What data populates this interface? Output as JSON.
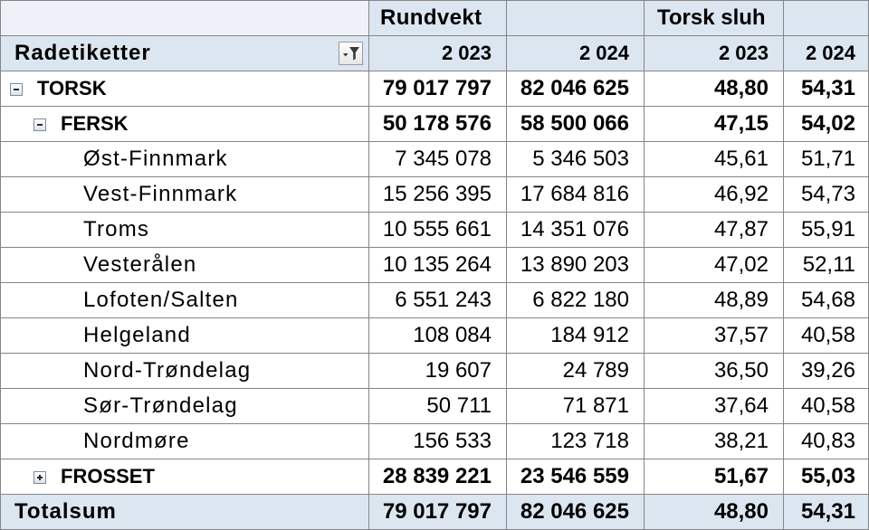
{
  "pivot": {
    "measures": [
      {
        "name": "Rundvekt"
      },
      {
        "name": "Torsk sluh"
      }
    ],
    "row_labels_header": "Radetiketter",
    "filter_icon": "filter-dropdown-icon",
    "years": [
      "2 023",
      "2 024",
      "2 023",
      "2 024"
    ],
    "rows": [
      {
        "label": "TORSK",
        "expanded": true,
        "toggle_icon": "collapse-minus-icon",
        "values": [
          "79 017 797",
          "82 046 625",
          "48,80",
          "54,31"
        ],
        "children": [
          {
            "label": "FERSK",
            "expanded": true,
            "toggle_icon": "collapse-minus-icon",
            "values": [
              "50 178 576",
              "58 500 066",
              "47,15",
              "54,02"
            ],
            "children": [
              {
                "label": "Øst-Finnmark",
                "values": [
                  "7 345 078",
                  "5 346 503",
                  "45,61",
                  "51,71"
                ]
              },
              {
                "label": "Vest-Finnmark",
                "values": [
                  "15 256 395",
                  "17 684 816",
                  "46,92",
                  "54,73"
                ]
              },
              {
                "label": "Troms",
                "values": [
                  "10 555 661",
                  "14 351 076",
                  "47,87",
                  "55,91"
                ]
              },
              {
                "label": "Vesterålen",
                "values": [
                  "10 135 264",
                  "13 890 203",
                  "47,02",
                  "52,11"
                ]
              },
              {
                "label": "Lofoten/Salten",
                "values": [
                  "6 551 243",
                  "6 822 180",
                  "48,89",
                  "54,68"
                ]
              },
              {
                "label": "Helgeland",
                "values": [
                  "108 084",
                  "184 912",
                  "37,57",
                  "40,58"
                ]
              },
              {
                "label": "Nord-Trøndelag",
                "values": [
                  "19 607",
                  "24 789",
                  "36,50",
                  "39,26"
                ]
              },
              {
                "label": "Sør-Trøndelag",
                "values": [
                  "50 711",
                  "71 871",
                  "37,64",
                  "40,58"
                ]
              },
              {
                "label": "Nordmøre",
                "values": [
                  "156 533",
                  "123 718",
                  "38,21",
                  "40,83"
                ]
              }
            ]
          },
          {
            "label": "FROSSET",
            "expanded": false,
            "toggle_icon": "expand-plus-icon",
            "values": [
              "28 839 221",
              "23 546 559",
              "51,67",
              "55,03"
            ]
          }
        ]
      }
    ],
    "total": {
      "label": "Totalsum",
      "values": [
        "79 017 797",
        "82 046 625",
        "48,80",
        "54,31"
      ]
    }
  },
  "colors": {
    "header_bg": "#dce6f1",
    "grid": "#858585",
    "text": "#000000",
    "cell_bg": "#ffffff"
  }
}
